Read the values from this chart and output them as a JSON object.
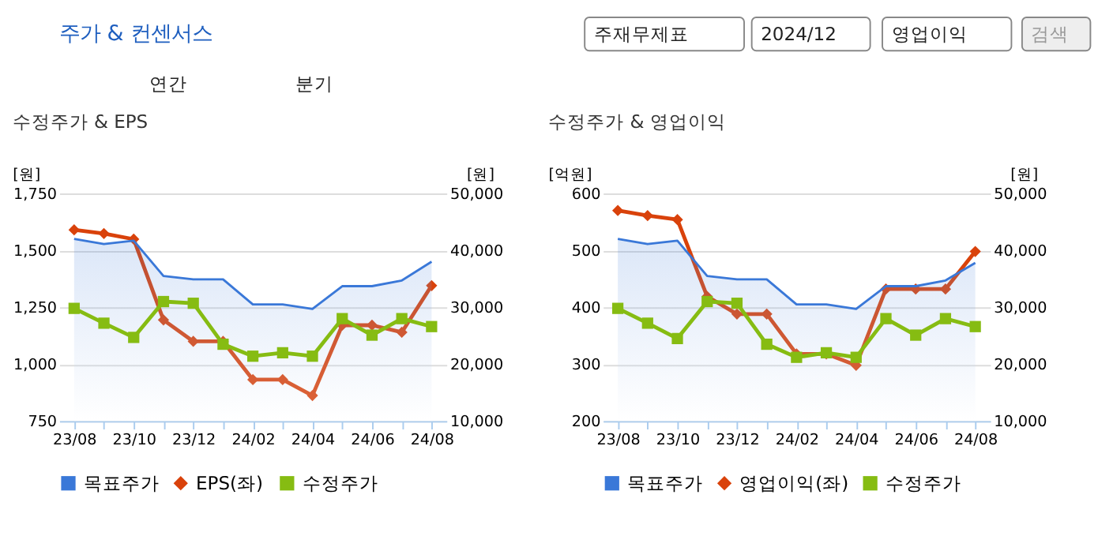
{
  "chart_data": [
    {
      "type": "other",
      "title": "주가 & 컨센서스",
      "annotations": [
        "주재무제표",
        "2024/12",
        "영업이익",
        "검색",
        "연간",
        "분기"
      ]
    },
    {
      "type": "line",
      "title": "수정주가 & EPS",
      "ylabel": "[원]",
      "y2label": "[원]",
      "categories": [
        "23/08",
        null,
        "23/10",
        null,
        "23/12",
        null,
        "24/02",
        null,
        "24/04",
        null,
        "24/06",
        null,
        "24/08"
      ],
      "series": [
        {
          "name": "목표주가",
          "type": "area",
          "axis": "y2",
          "color": "#3a78d8",
          "marker": "none",
          "values": [
            42000,
            41100,
            41700,
            35500,
            34900,
            34900,
            30500,
            30500,
            29700,
            33700,
            33700,
            34700,
            38000
          ]
        },
        {
          "name": "EPS(좌)",
          "type": "line",
          "color": "#d9420b",
          "marker": "diamond",
          "values": [
            1590,
            1574,
            1549,
            1194,
            1100,
            1100,
            932,
            932,
            862,
            1171,
            1171,
            1140,
            1345
          ]
        },
        {
          "name": "수정주가",
          "type": "line",
          "axis": "y2",
          "color": "#86bc12",
          "marker": "square",
          "values": [
            29800,
            27200,
            24700,
            31000,
            30700,
            23500,
            21400,
            22000,
            21400,
            28000,
            25100,
            28000,
            26600
          ]
        }
      ],
      "ylim": [
        750,
        1750
      ],
      "yticks": [
        750,
        {
          "value": 1000,
          "label": "1,000"
        },
        {
          "value": 1250,
          "label": "1,250"
        },
        {
          "value": 1500,
          "label": "1,500"
        },
        {
          "value": 1750,
          "label": "1,750"
        }
      ],
      "y2lim": [
        10000,
        50000
      ],
      "y2ticks": [
        {
          "value": 10000,
          "label": "10,000"
        },
        {
          "value": 20000,
          "label": "20,000"
        },
        {
          "value": 30000,
          "label": "30,000"
        },
        {
          "value": 40000,
          "label": "40,000"
        },
        {
          "value": 50000,
          "label": "50,000"
        }
      ],
      "grid": "y",
      "legend": "bottom"
    },
    {
      "type": "line",
      "title": "수정주가 & 영업이익",
      "ylabel": "[억원]",
      "y2label": "[원]",
      "categories": [
        "23/08",
        null,
        "23/10",
        null,
        "23/12",
        null,
        "24/02",
        null,
        "24/04",
        null,
        "24/06",
        null,
        "24/08"
      ],
      "series": [
        {
          "name": "목표주가",
          "type": "area",
          "axis": "y2",
          "color": "#3a78d8",
          "marker": "none",
          "values": [
            42000,
            41100,
            41700,
            35500,
            34900,
            34900,
            30500,
            30500,
            29700,
            33700,
            33700,
            34700,
            37800
          ]
        },
        {
          "name": "영업이익(좌)",
          "type": "line",
          "color": "#d9420b",
          "marker": "diamond",
          "values": [
            570,
            561,
            554,
            419,
            388,
            388,
            318,
            318,
            298,
            432,
            432,
            432,
            498
          ]
        },
        {
          "name": "수정주가",
          "type": "line",
          "axis": "y2",
          "color": "#86bc12",
          "marker": "square",
          "values": [
            29800,
            27200,
            24500,
            31000,
            30700,
            23500,
            21200,
            22000,
            21200,
            28000,
            25100,
            28000,
            26600
          ]
        }
      ],
      "ylim": [
        200,
        600
      ],
      "yticks": [
        200,
        300,
        400,
        500,
        600
      ],
      "y2lim": [
        10000,
        50000
      ],
      "y2ticks": [
        {
          "value": 10000,
          "label": "10,000"
        },
        {
          "value": 20000,
          "label": "20,000"
        },
        {
          "value": 30000,
          "label": "30,000"
        },
        {
          "value": 40000,
          "label": "40,000"
        },
        {
          "value": 50000,
          "label": "50,000"
        }
      ],
      "grid": "y",
      "legend": "bottom"
    }
  ]
}
